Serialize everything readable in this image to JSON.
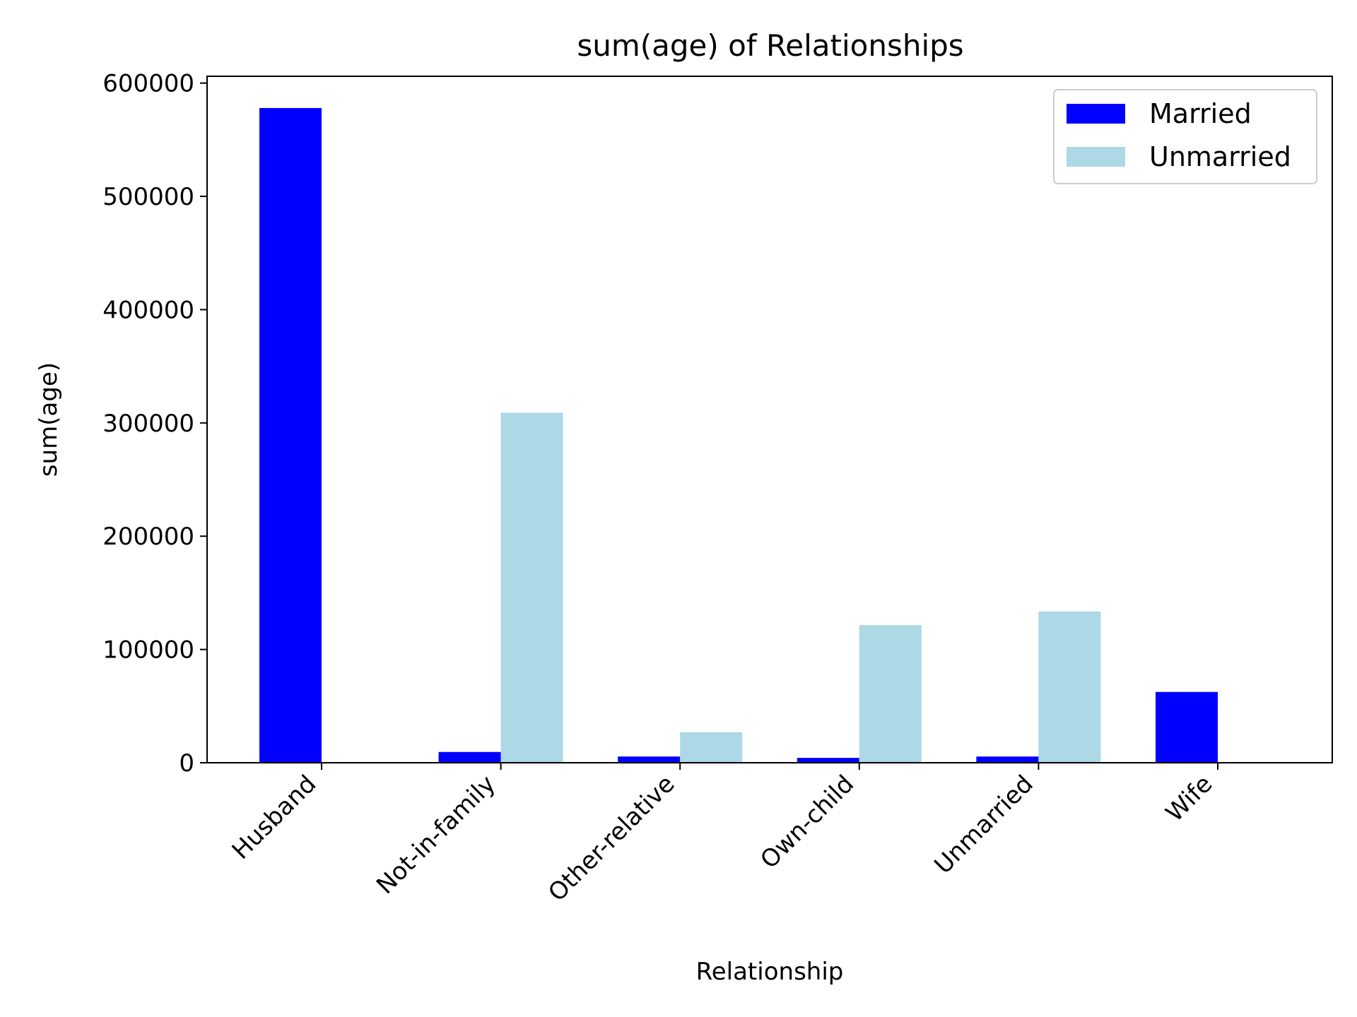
{
  "chart_data": {
    "type": "bar",
    "title": "sum(age) of Relationships",
    "xlabel": "Relationship",
    "ylabel": "sum(age)",
    "categories": [
      "Husband",
      "Not-in-family",
      "Other-relative",
      "Own-child",
      "Unmarried",
      "Wife"
    ],
    "series": [
      {
        "name": "Married",
        "color": "#0000ff",
        "values": [
          578000,
          9500,
          5500,
          4300,
          5500,
          62500
        ]
      },
      {
        "name": "Unmarried",
        "color": "#add8e6",
        "values": [
          0,
          309000,
          27000,
          121500,
          133500,
          0
        ]
      }
    ],
    "ylim": [
      0,
      606000
    ],
    "yticks": [
      0,
      100000,
      200000,
      300000,
      400000,
      500000,
      600000
    ],
    "ytick_labels": [
      "0",
      "100000",
      "200000",
      "300000",
      "400000",
      "500000",
      "600000"
    ],
    "legend": "upper right",
    "grid": false
  }
}
